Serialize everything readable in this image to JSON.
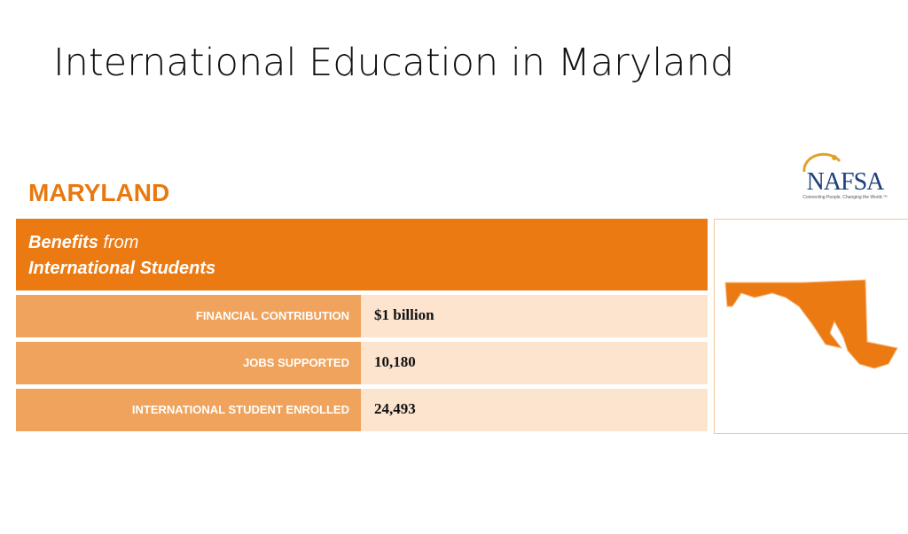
{
  "header": {
    "title": "International Education in Maryland"
  },
  "state": "MARYLAND",
  "logo": {
    "name": "NAFSA",
    "tagline": "Connecting People. Changing the World.™"
  },
  "table": {
    "heading": {
      "bold": "Benefits",
      "light": "from",
      "line2": "International Students"
    },
    "rows": [
      [
        "FINANCIAL CONTRIBUTION",
        "$1 billion"
      ],
      [
        "JOBS SUPPORTED",
        "10,180"
      ],
      [
        "INTERNATIONAL STUDENT ENROLLED",
        "24,493"
      ]
    ]
  }
}
